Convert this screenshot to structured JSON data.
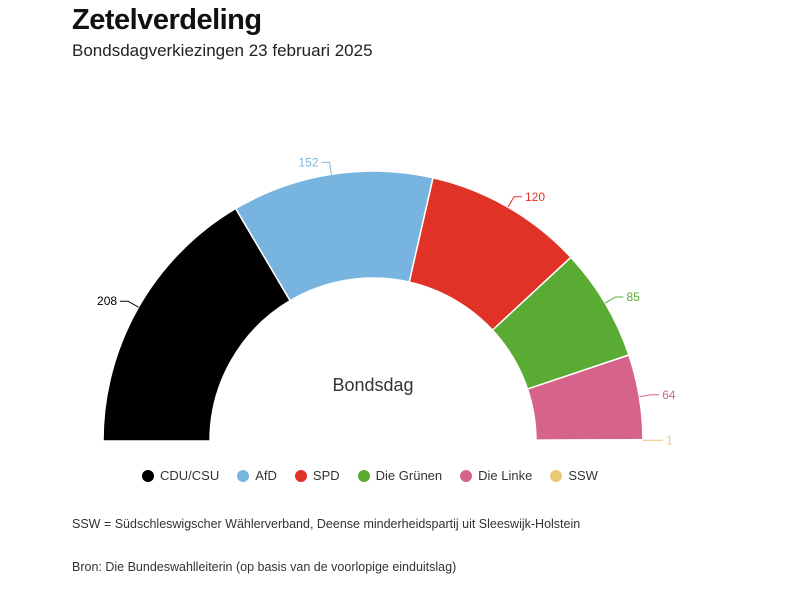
{
  "header": {
    "title": "Zetelverdeling",
    "subtitle": "Bondsdagverkiezingen 23 februari 2025"
  },
  "chart_data": {
    "type": "pie",
    "variant": "semicircle",
    "title": "Zetelverdeling",
    "subtitle": "Bondsdagverkiezingen 23 februari 2025",
    "center_label": "Bondsdag",
    "series": [
      {
        "name": "CDU/CSU",
        "value": 208,
        "color": "#000000"
      },
      {
        "name": "AfD",
        "value": 152,
        "color": "#77b5e0"
      },
      {
        "name": "SPD",
        "value": 120,
        "color": "#e03226"
      },
      {
        "name": "Die Grünen",
        "value": 85,
        "color": "#5aab34"
      },
      {
        "name": "Die Linke",
        "value": 64,
        "color": "#d6638a"
      },
      {
        "name": "SSW",
        "value": 1,
        "color": "#ecc974"
      }
    ],
    "legend_position": "bottom"
  },
  "footer": {
    "note": "SSW = Südschleswigscher Wählerverband, Deense minderheidspartij uit Sleeswijk-Holstein",
    "source": "Bron: Die Bundeswahlleiterin (op basis van de voorlopige einduitslag)"
  }
}
